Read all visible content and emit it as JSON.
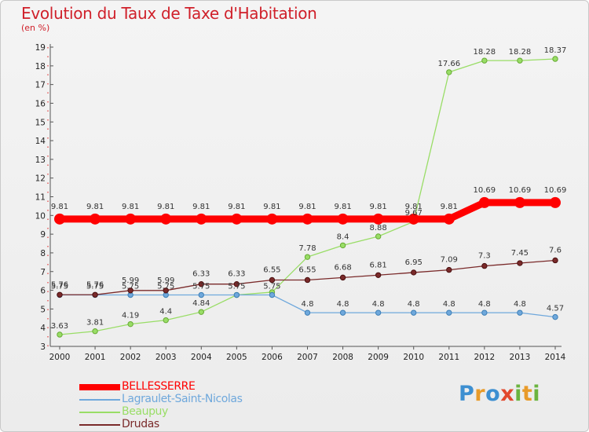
{
  "chart_data": {
    "type": "line",
    "title": "Evolution du Taux de Taxe d'Habitation",
    "subtitle": "(en %)",
    "x": [
      "2000",
      "2001",
      "2002",
      "2003",
      "2004",
      "2005",
      "2006",
      "2007",
      "2008",
      "2009",
      "2010",
      "2011",
      "2012",
      "2013",
      "2014"
    ],
    "ylim": [
      3,
      19
    ],
    "yticks": [
      3,
      4,
      5,
      6,
      7,
      8,
      9,
      10,
      11,
      12,
      13,
      14,
      15,
      16,
      17,
      18,
      19
    ],
    "grid": false,
    "legend_position": "bottom-left",
    "series": [
      {
        "name": "BELLESSERRE",
        "color": "#ff0000",
        "values": [
          9.81,
          9.81,
          9.81,
          9.81,
          9.81,
          9.81,
          9.81,
          9.81,
          9.81,
          9.81,
          9.81,
          9.81,
          10.69,
          10.69,
          10.69
        ],
        "labels": [
          "9.81",
          "9.81",
          "9.81",
          "9.81",
          "9.81",
          "9.81",
          "9.81",
          "9.81",
          "9.81",
          "9.81",
          "9.81",
          "9.81",
          "10.69",
          "10.69",
          "10.69"
        ]
      },
      {
        "name": "Lagraulet-Saint-Nicolas",
        "color": "#6fa8dc",
        "values": [
          5.75,
          5.75,
          5.75,
          5.75,
          5.75,
          5.75,
          5.75,
          4.8,
          4.8,
          4.8,
          4.8,
          4.8,
          4.8,
          4.8,
          4.57
        ],
        "labels": [
          "5.75",
          "5.75",
          "5.75",
          "5.75",
          "5.75",
          "5.75",
          "5.75",
          "4.8",
          "4.8",
          "4.8",
          "4.8",
          "4.8",
          "4.8",
          "4.8",
          "4.57"
        ]
      },
      {
        "name": "Beaupuy",
        "color": "#99dd66",
        "values": [
          3.63,
          3.81,
          4.19,
          4.4,
          4.84,
          5.75,
          5.9,
          7.78,
          8.4,
          8.88,
          9.67,
          17.66,
          18.28,
          18.28,
          18.37
        ],
        "labels": [
          "3.63",
          "3.81",
          "4.19",
          "4.4",
          "4.84",
          "",
          "",
          "7.78",
          "8.4",
          "8.88",
          "9.67",
          "17.66",
          "18.28",
          "18.28",
          "18.37"
        ]
      },
      {
        "name": "Drudas",
        "color": "#7a2a2a",
        "values": [
          5.76,
          5.76,
          5.99,
          5.99,
          6.33,
          6.33,
          6.55,
          6.55,
          6.68,
          6.81,
          6.95,
          7.09,
          7.3,
          7.45,
          7.6
        ],
        "labels": [
          "5.76",
          "5.76",
          "5.99",
          "5.99",
          "6.33",
          "6.33",
          "6.55",
          "6.55",
          "6.68",
          "6.81",
          "6.95",
          "7.09",
          "7.3",
          "7.45",
          "7.6"
        ]
      }
    ]
  },
  "legend": {
    "items": [
      {
        "label": "BELLESSERRE",
        "color": "#ff0000"
      },
      {
        "label": "Lagraulet-Saint-Nicolas",
        "color": "#6fa8dc"
      },
      {
        "label": "Beaupuy",
        "color": "#99dd66"
      },
      {
        "label": "Drudas",
        "color": "#7a2a2a"
      }
    ]
  },
  "logo": {
    "letters": [
      "P",
      "r",
      "o",
      "x",
      "i",
      "t",
      "i"
    ],
    "colors": [
      "#3d8fd1",
      "#e89b2a",
      "#3d8fd1",
      "#e2492d",
      "#6bb43f",
      "#e89b2a",
      "#6bb43f"
    ]
  }
}
